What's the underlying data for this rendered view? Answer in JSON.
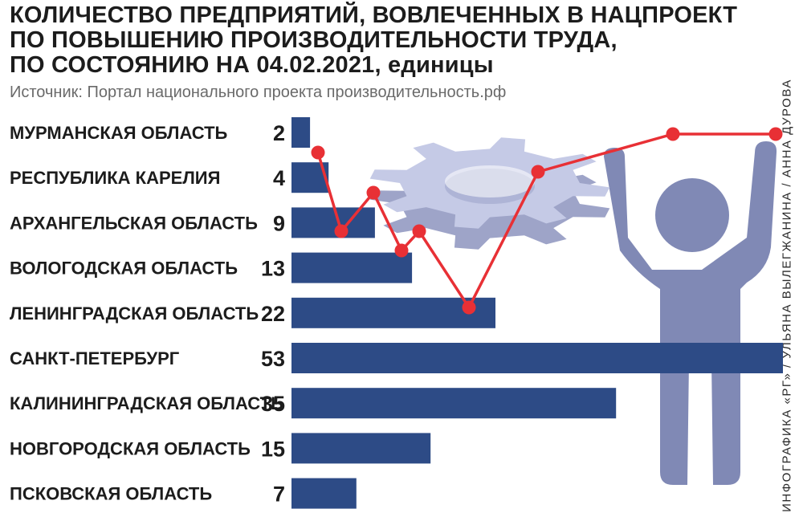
{
  "header": {
    "title_line1": "КОЛИЧЕСТВО ПРЕДПРИЯТИЙ, ВОВЛЕЧЕННЫХ В НАЦПРОЕКТ",
    "title_line2": "ПО ПОВЫШЕНИЮ ПРОИЗВОДИТЕЛЬНОСТИ ТРУДА,",
    "title_line3": "ПО СОСТОЯНИЮ НА 04.02.2021,",
    "title_unit": "единицы",
    "source": "Источник: Портал национального проекта производительность.рф",
    "credit": "ИНФОГРАФИКА «РГ» / УЛЬЯНА ВЫЛЕГЖАНИНА / АННА ДУРОВА"
  },
  "colors": {
    "bar": "#2d4b86",
    "figure": "#8089b5",
    "gear": "#c5cae6",
    "line": "#e83035"
  },
  "chart_data": {
    "type": "bar",
    "orientation": "horizontal",
    "title": "КОЛИЧЕСТВО ПРЕДПРИЯТИЙ, ВОВЛЕЧЕННЫХ В НАЦПРОЕКТ ПО ПОВЫШЕНИЮ ПРОИЗВОДИТЕЛЬНОСТИ ТРУДА, ПО СОСТОЯНИЮ НА 04.02.2021, единицы",
    "categories": [
      "МУРМАНСКАЯ ОБЛАСТЬ",
      "РЕСПУБЛИКА КАРЕЛИЯ",
      "АРХАНГЕЛЬСКАЯ ОБЛАСТЬ",
      "ВОЛОГОДСКАЯ ОБЛАСТЬ",
      "ЛЕНИНГРАДСКАЯ ОБЛАСТЬ",
      "САНКТ-ПЕТЕРБУРГ",
      "КАЛИНИНГРАДСКАЯ ОБЛАСТЬ",
      "НОВГОРОДСКАЯ ОБЛАСТЬ",
      "ПСКОВСКАЯ ОБЛАСТЬ"
    ],
    "values": [
      2,
      4,
      9,
      13,
      22,
      53,
      35,
      15,
      7
    ],
    "xlim": [
      0,
      53
    ],
    "grid": false,
    "legend": "none"
  }
}
